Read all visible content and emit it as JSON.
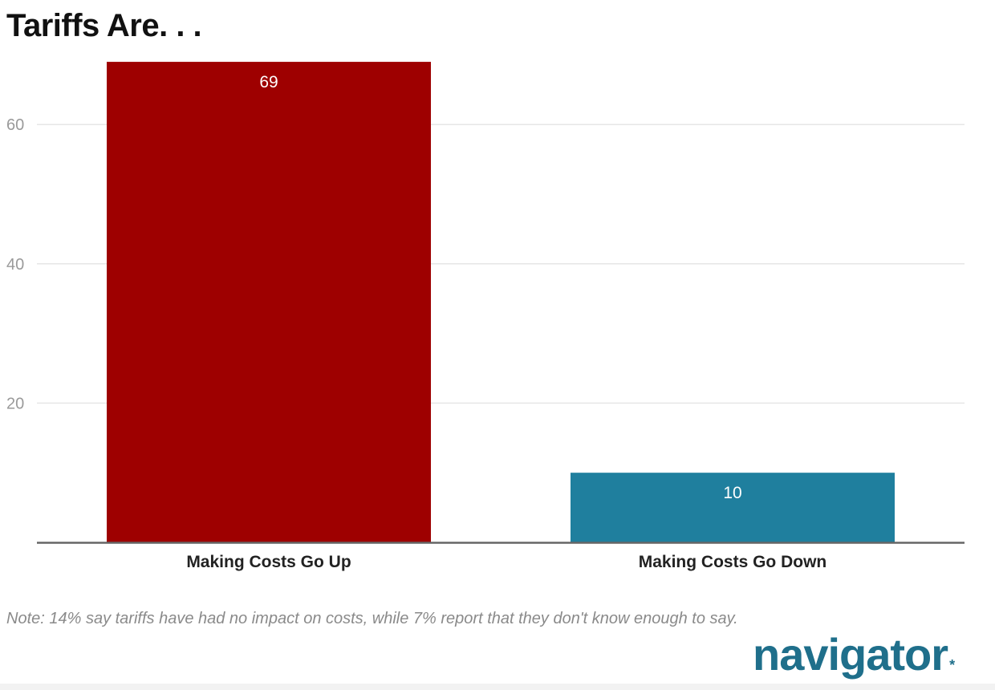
{
  "title": "Tariffs Are. . .",
  "note": "Note: 14% say tariffs have had no impact on costs, while 7% report that they don't know enough to say.",
  "logo": {
    "text": "navigator",
    "star": "*",
    "color": "#1f6f8b"
  },
  "chart_data": {
    "type": "bar",
    "categories": [
      "Making Costs Go Up",
      "Making Costs Go Down"
    ],
    "values": [
      69,
      10
    ],
    "colors": [
      "#9e0000",
      "#1f7f9e"
    ],
    "data_labels": [
      "69",
      "10"
    ],
    "yticks": [
      "20",
      "40",
      "60"
    ],
    "ytick_values": [
      20,
      40,
      60
    ],
    "ylim": [
      0,
      69
    ],
    "grid": true,
    "legend": "none",
    "colors_meta": {
      "grid": "#e6e6e6",
      "axis": "#666666",
      "tick_label": "#9a9a9a",
      "category_label": "#222222",
      "data_label": "#ffffff"
    }
  }
}
